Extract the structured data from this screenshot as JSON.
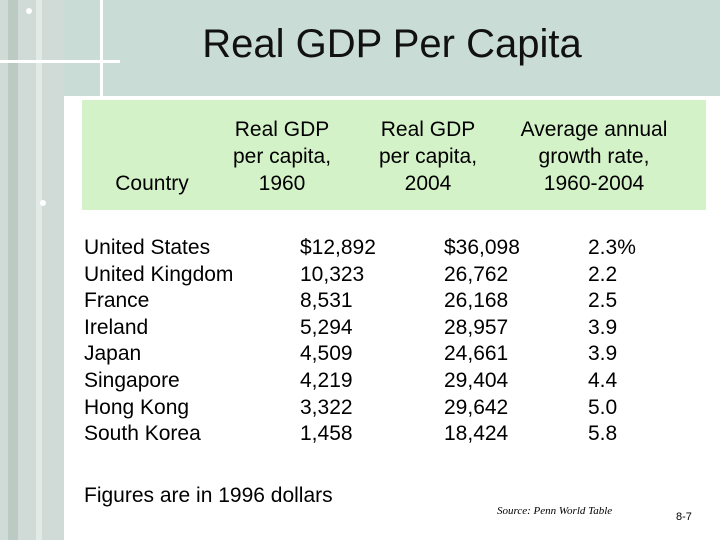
{
  "title": "Real GDP Per Capita",
  "headers": {
    "country": "Country",
    "gdp_1960": "Real GDP\nper capita,\n1960",
    "gdp_2004": "Real GDP\nper capita,\n2004",
    "growth": "Average annual\ngrowth rate,\n1960-2004"
  },
  "table": {
    "countries": [
      "United States",
      "United Kingdom",
      "France",
      "Ireland",
      "Japan",
      "Singapore",
      "Hong Kong",
      "South Korea"
    ],
    "gdp_1960": [
      "$12,892",
      "10,323",
      "8,531",
      "5,294",
      "4,509",
      "4,219",
      "3,322",
      "1,458"
    ],
    "gdp_2004": [
      "$36,098",
      "26,762",
      "26,168",
      "28,957",
      "24,661",
      "29,404",
      "29,642",
      "18,424"
    ],
    "growth": [
      "2.3%",
      "2.2",
      "2.5",
      "3.9",
      "3.9",
      "4.4",
      "5.0",
      "5.8"
    ]
  },
  "footnote": "Figures are in 1996 dollars",
  "source": "Source: Penn World Table",
  "slide_number": "8-7",
  "colors": {
    "header_band": "#d4f2c8",
    "frame": "#c9ddd6"
  }
}
